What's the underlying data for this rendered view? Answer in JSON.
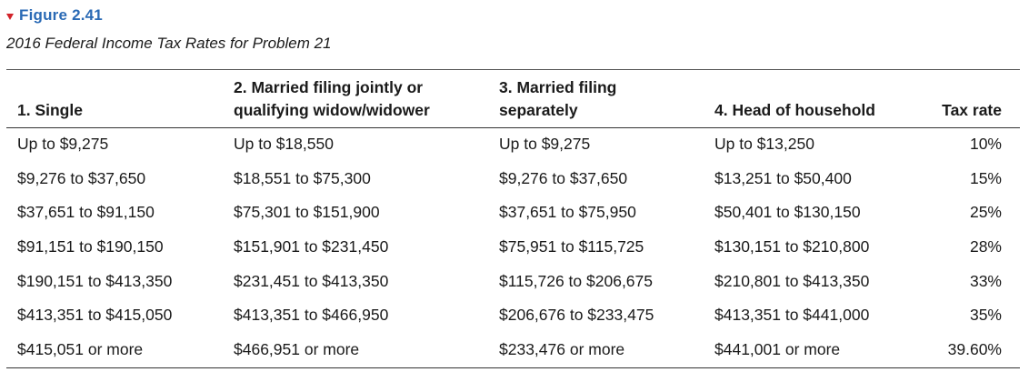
{
  "figure": {
    "label": "Figure 2.41",
    "caption": "2016 Federal Income Tax Rates for Problem 21"
  },
  "table": {
    "headers": [
      {
        "lines": [
          "1. Single"
        ]
      },
      {
        "lines": [
          "2. Married filing jointly or",
          "qualifying widow/widower"
        ]
      },
      {
        "lines": [
          "3. Married filing",
          "separately"
        ]
      },
      {
        "lines": [
          "4. Head of household"
        ]
      },
      {
        "lines": [
          "Tax rate"
        ]
      }
    ],
    "rows": [
      [
        "Up to $9,275",
        "Up to $18,550",
        "Up to $9,275",
        "Up to $13,250",
        "10%"
      ],
      [
        "$9,276 to $37,650",
        "$18,551 to $75,300",
        "$9,276 to $37,650",
        "$13,251 to $50,400",
        "15%"
      ],
      [
        "$37,651 to $91,150",
        "$75,301 to $151,900",
        "$37,651 to $75,950",
        "$50,401 to $130,150",
        "25%"
      ],
      [
        "$91,151 to $190,150",
        "$151,901 to $231,450",
        "$75,951 to $115,725",
        "$130,151 to $210,800",
        "28%"
      ],
      [
        "$190,151 to $413,350",
        "$231,451 to $413,350",
        "$115,726 to $206,675",
        "$210,801 to $413,350",
        "33%"
      ],
      [
        "$413,351 to $415,050",
        "$413,351 to $466,950",
        "$206,676 to $233,475",
        "$413,351 to $441,000",
        "35%"
      ],
      [
        "$415,051 or more",
        "$466,951 or more",
        "$233,476 or more",
        "$441,001 or more",
        "39.60%"
      ]
    ]
  },
  "colors": {
    "figure_label": "#2a6ab5",
    "triangle": "#d2232a",
    "text": "#1a1a1a"
  }
}
